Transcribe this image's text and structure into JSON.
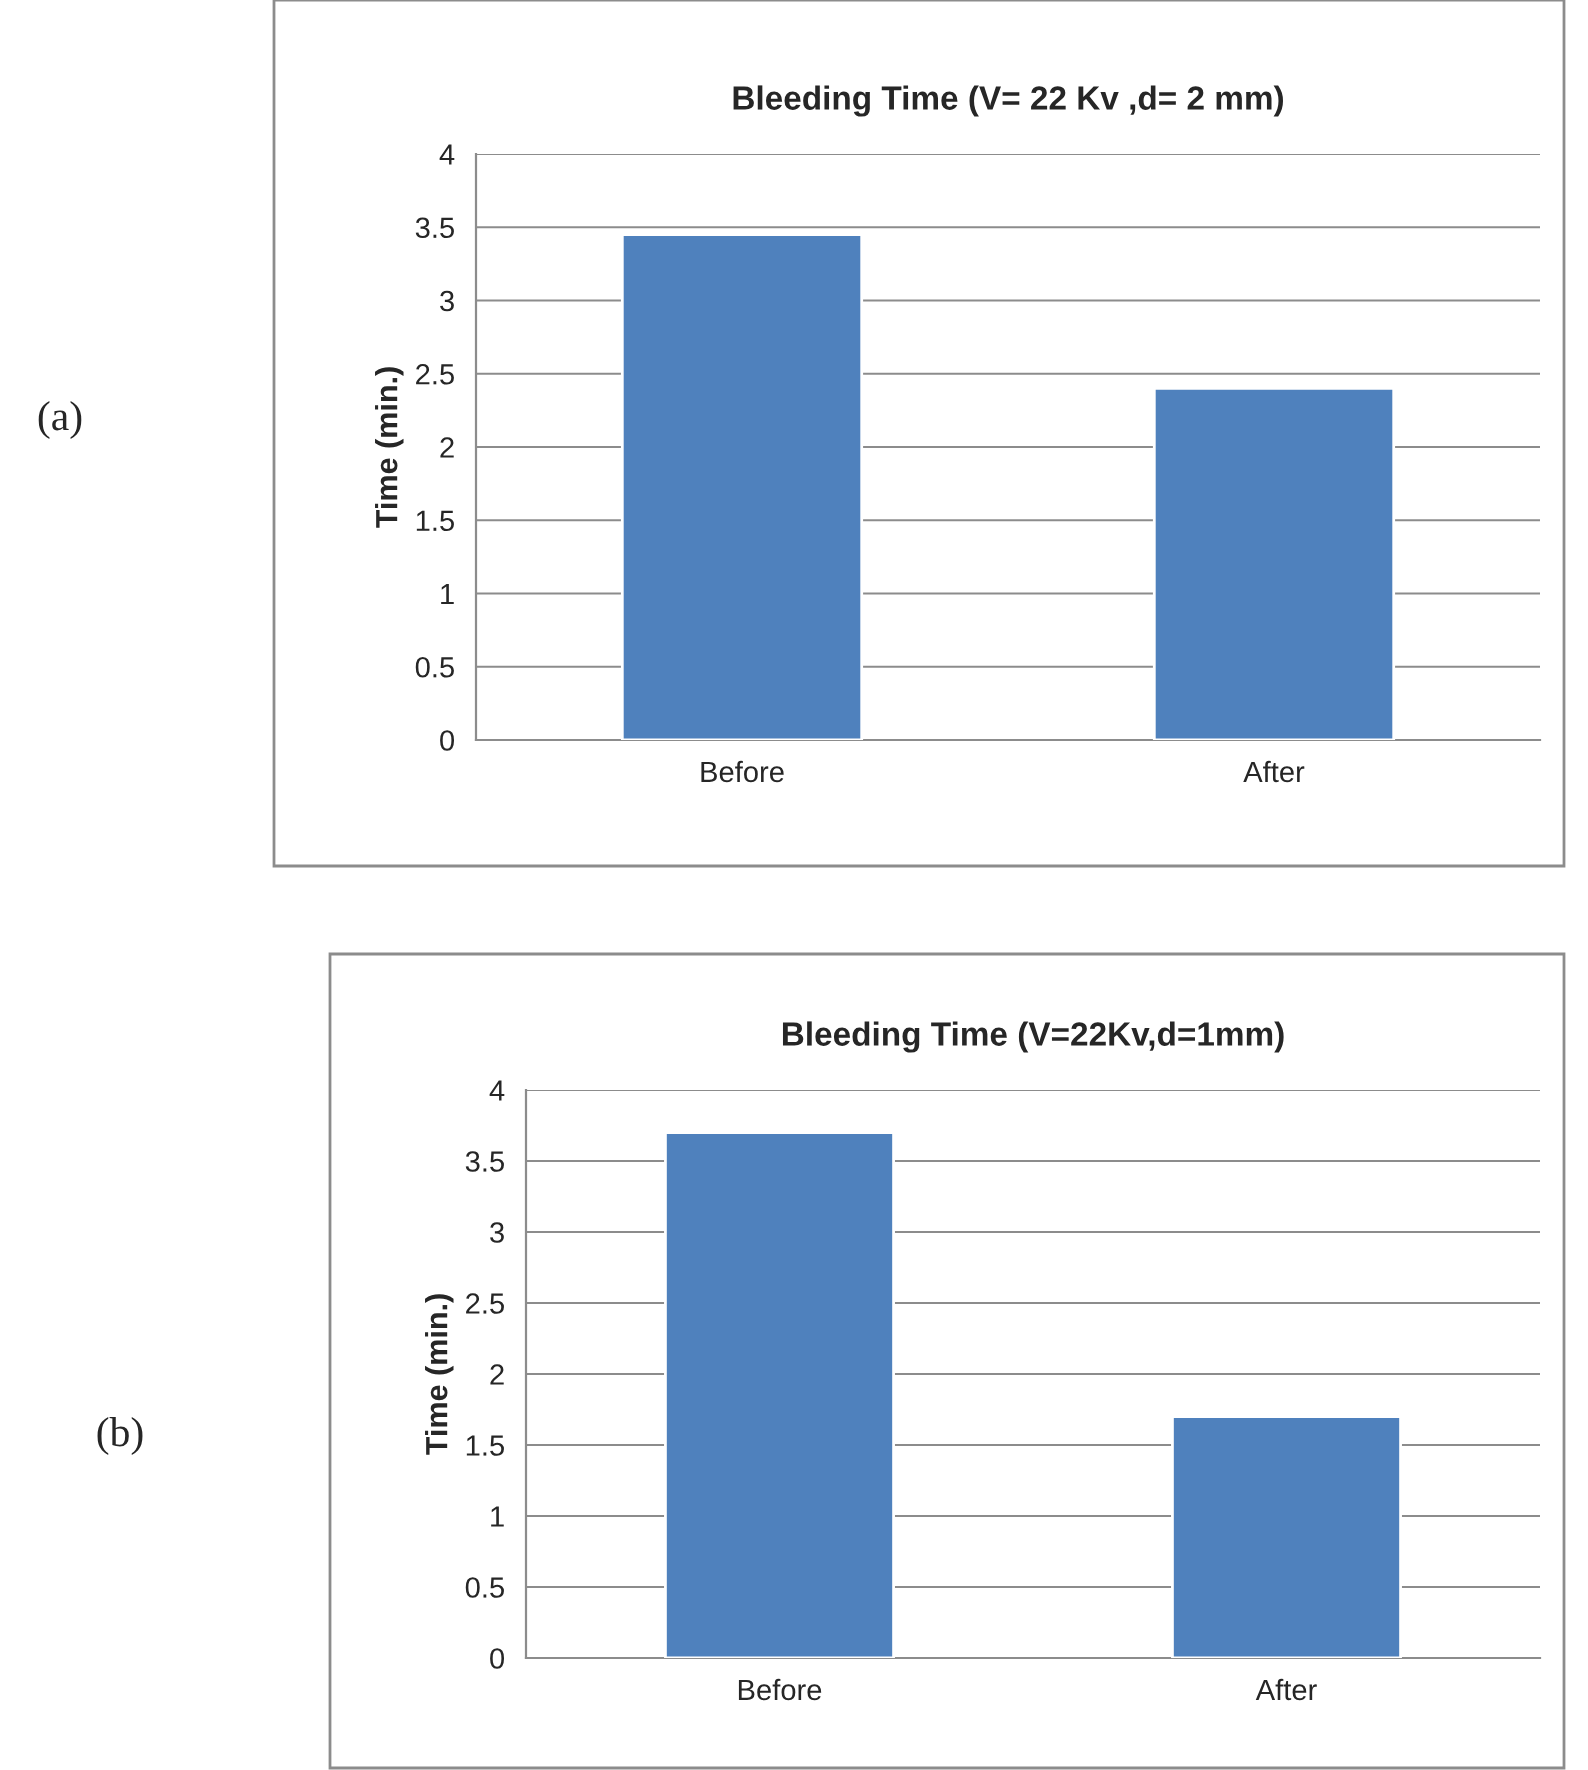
{
  "chart_data": [
    {
      "type": "bar",
      "title": "Bleeding Time (V= 22 Kv ,d= 2 mm)",
      "ylabel": "Time (min.)",
      "categories": [
        "Before",
        "After"
      ],
      "values": [
        3.45,
        2.4
      ],
      "color": "#4f81bd",
      "ylim": [
        0,
        4
      ],
      "yticks": [
        0,
        0.5,
        1,
        1.5,
        2,
        2.5,
        3,
        3.5,
        4
      ],
      "grid": "y",
      "legend": false,
      "annotations": [
        "(a)"
      ]
    },
    {
      "type": "bar",
      "title": "Bleeding Time (V=22Kv,d=1mm)",
      "ylabel": "Time (min.)",
      "categories": [
        "Before",
        "After"
      ],
      "values": [
        3.7,
        1.7
      ],
      "color": "#4f81bd",
      "ylim": [
        0,
        4
      ],
      "yticks": [
        0,
        0.5,
        1,
        1.5,
        2,
        2.5,
        3,
        3.5,
        4
      ],
      "grid": "y",
      "legend": false,
      "annotations": [
        "(b)"
      ]
    }
  ]
}
